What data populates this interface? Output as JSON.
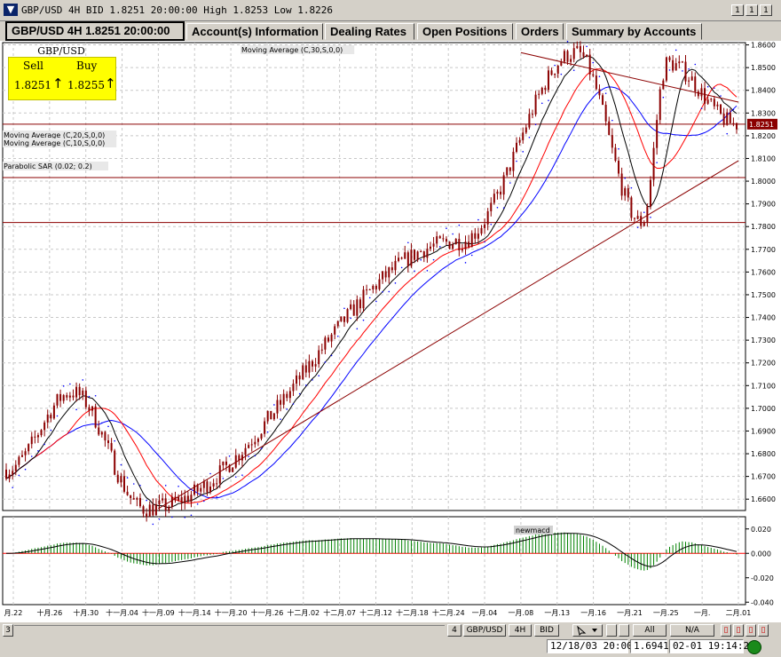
{
  "window": {
    "title": "GBP/USD 4H BID 1.8251 20:00:00 High 1.8253 Low 1.8226",
    "buttons": [
      "1",
      "1",
      "1"
    ]
  },
  "tabs": [
    {
      "label": "GBP/USD 4H 1.8251 20:00:00",
      "active": true
    },
    {
      "label": "Account(s) Information"
    },
    {
      "label": "Dealing Rates"
    },
    {
      "label": "Open Positions"
    },
    {
      "label": "Orders"
    },
    {
      "label": "Summary by Accounts"
    }
  ],
  "quote": {
    "pair": "GBP/USD",
    "sell_label": "Sell",
    "buy_label": "Buy",
    "sell_value": "1.8251",
    "buy_value": "1.8255",
    "arrow": "↑"
  },
  "indicators": {
    "ma30": "Moving Average (C,30,S,0,0)",
    "ma20": "Moving Average (C,20,S,0,0)",
    "ma10": "Moving Average (C,10,S,0,0)",
    "sar": "Parabolic SAR (0.02; 0.2)",
    "macd": "newmacd"
  },
  "price_axis": {
    "ticks": [
      "1.8600",
      "1.8500",
      "1.8400",
      "1.8300",
      "1.8200",
      "1.8100",
      "1.8000",
      "1.7900",
      "1.7800",
      "1.7700",
      "1.7600",
      "1.7500",
      "1.7400",
      "1.7300",
      "1.7200",
      "1.7100",
      "1.7000",
      "1.6900",
      "1.6800",
      "1.6700",
      "1.6600"
    ],
    "current": "1.8251"
  },
  "macd_axis": {
    "ticks": [
      "0.020",
      "0.000",
      "-0.020",
      "-0.040"
    ]
  },
  "date_axis": {
    "ticks": [
      "月.22",
      "十月.26",
      "十月.30",
      "十一月.04",
      "十一月.09",
      "十一月.14",
      "十一月.20",
      "十一月.26",
      "十二月.02",
      "十二月.07",
      "十二月.12",
      "十二月.18",
      "十二月.24",
      "一月.04",
      "一月.08",
      "一月.13",
      "一月.16",
      "一月.21",
      "一月.25",
      "一月.",
      "二月.01"
    ]
  },
  "chart_data": {
    "type": "candlestick",
    "symbol": "GBP/USD",
    "timeframe": "4H",
    "ylim": [
      1.655,
      1.861
    ],
    "horizontal_levels": [
      1.8251,
      1.8016,
      1.7818
    ],
    "trendlines": [
      {
        "from": [
          "十一月.09",
          1.6558
        ],
        "to": [
          "二月.01",
          1.809
        ]
      },
      {
        "from": [
          "一月.08",
          1.8566
        ],
        "to": [
          "二月.01",
          1.8348
        ]
      }
    ],
    "key_points": [
      {
        "label": "start",
        "price": 1.673
      },
      {
        "label": "十月.30 high",
        "price": 1.707
      },
      {
        "label": "十一月.09 low",
        "price": 1.6558
      },
      {
        "label": "十二月.18 high",
        "price": 1.7735
      },
      {
        "label": "一月.08 high",
        "price": 1.8566
      },
      {
        "label": "一月.16 low",
        "price": 1.7818
      },
      {
        "label": "一月.21 high",
        "price": 1.852
      },
      {
        "label": "end",
        "price": 1.8251
      }
    ],
    "macd_ylim": [
      -0.042,
      0.03
    ]
  },
  "bottom": {
    "left_label": "3",
    "buttons": [
      "4",
      "GBP/USD",
      "4H",
      "BID",
      "All",
      "N/A"
    ],
    "status": {
      "date": "12/18/03 20:00",
      "value": "1.6941",
      "time": "02-01 19:14:27"
    }
  },
  "colors": {
    "candle": "#8b0000",
    "ma10": "#000000",
    "ma20": "#ff0000",
    "ma30": "#0000ff",
    "sar": "#0000ff",
    "level_line": "#8b0000",
    "macd_hist": "#008000"
  }
}
